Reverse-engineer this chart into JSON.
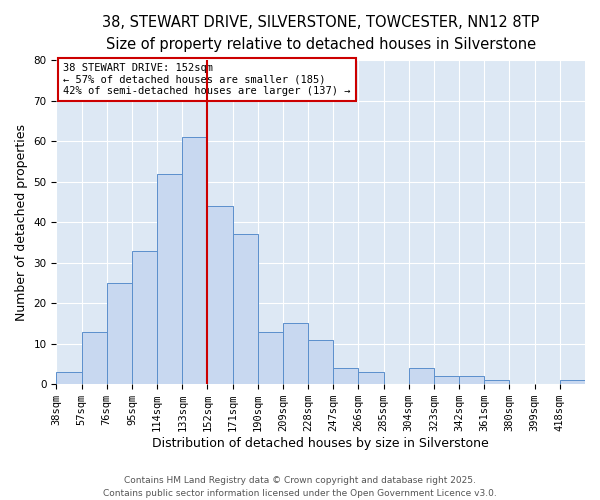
{
  "title_line1": "38, STEWART DRIVE, SILVERSTONE, TOWCESTER, NN12 8TP",
  "title_line2": "Size of property relative to detached houses in Silverstone",
  "xlabel": "Distribution of detached houses by size in Silverstone",
  "ylabel": "Number of detached properties",
  "bin_labels": [
    "38sqm",
    "57sqm",
    "76sqm",
    "95sqm",
    "114sqm",
    "133sqm",
    "152sqm",
    "171sqm",
    "190sqm",
    "209sqm",
    "228sqm",
    "247sqm",
    "266sqm",
    "285sqm",
    "304sqm",
    "323sqm",
    "342sqm",
    "361sqm",
    "380sqm",
    "399sqm",
    "418sqm"
  ],
  "bin_edges": [
    38,
    57,
    76,
    95,
    114,
    133,
    152,
    171,
    190,
    209,
    228,
    247,
    266,
    285,
    304,
    323,
    342,
    361,
    380,
    399,
    418
  ],
  "bar_heights": [
    3,
    13,
    25,
    33,
    52,
    61,
    44,
    37,
    13,
    15,
    11,
    4,
    3,
    0,
    4,
    2,
    2,
    1,
    0,
    0,
    1
  ],
  "bar_color": "#c8d8f0",
  "bar_edge_color": "#5b8fcc",
  "reference_line_x": 152,
  "reference_line_color": "#cc0000",
  "annotation_text": "38 STEWART DRIVE: 152sqm\n← 57% of detached houses are smaller (185)\n42% of semi-detached houses are larger (137) →",
  "annotation_box_color": "#ffffff",
  "annotation_box_edge_color": "#cc0000",
  "ylim": [
    0,
    80
  ],
  "yticks": [
    0,
    10,
    20,
    30,
    40,
    50,
    60,
    70,
    80
  ],
  "figure_bg": "#ffffff",
  "axes_bg": "#dde8f4",
  "grid_color": "#ffffff",
  "footer_line1": "Contains HM Land Registry data © Crown copyright and database right 2025.",
  "footer_line2": "Contains public sector information licensed under the Open Government Licence v3.0.",
  "title_fontsize": 10.5,
  "subtitle_fontsize": 9.5,
  "axis_label_fontsize": 9,
  "tick_fontsize": 7.5,
  "annotation_fontsize": 7.5,
  "footer_fontsize": 6.5
}
